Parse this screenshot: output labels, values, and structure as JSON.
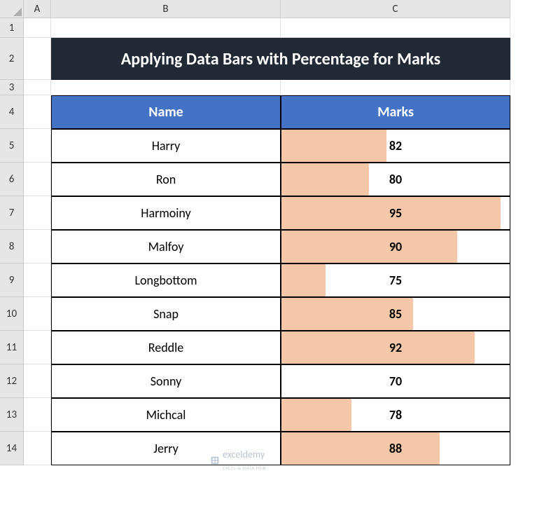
{
  "columns": [
    "A",
    "B",
    "C"
  ],
  "row_labels": [
    "1",
    "2",
    "3",
    "4",
    "5",
    "6",
    "7",
    "8",
    "9",
    "10",
    "11",
    "12",
    "13",
    "14"
  ],
  "title": "Applying Data Bars with Percentage for Marks",
  "headers": {
    "name": "Name",
    "marks": "Marks"
  },
  "rows": [
    {
      "name": "Harry",
      "marks": 82
    },
    {
      "name": "Ron",
      "marks": 80
    },
    {
      "name": "Harmoiny",
      "marks": 95
    },
    {
      "name": "Malfoy",
      "marks": 90
    },
    {
      "name": "Longbottom",
      "marks": 75
    },
    {
      "name": "Snap",
      "marks": 85
    },
    {
      "name": "Reddle",
      "marks": 92
    },
    {
      "name": "Sonny",
      "marks": 70
    },
    {
      "name": "Michcal",
      "marks": 78
    },
    {
      "name": "Jerry",
      "marks": 88
    }
  ],
  "databar": {
    "min": 70,
    "max": 96,
    "fill_color": "#f4c7a8",
    "min_percent_shown": 2
  },
  "colors": {
    "title_bg": "#212934",
    "title_fg": "#ffffff",
    "header_bg": "#4472c4",
    "header_fg": "#ffffff",
    "row_header_bg": "#e6e6e6",
    "col_header_bg": "#e6e6e6",
    "grid_border": "#cccccc",
    "table_border": "#000000",
    "cell_bg": "#ffffff"
  },
  "watermark": {
    "text": "exceldemy",
    "subtext": "EXCEL & DATA HUB"
  }
}
